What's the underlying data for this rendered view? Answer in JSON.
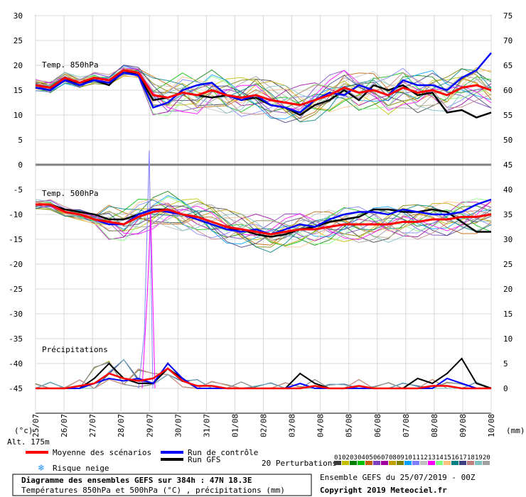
{
  "chart_data": {
    "type": "line",
    "panels": {
      "t850": {
        "label": "Temp. 850hPa"
      },
      "t500": {
        "label": "Temp. 500hPa"
      },
      "precip": {
        "label": "Précipitations"
      }
    },
    "left_axis": {
      "unit": "(°c)",
      "ylim": [
        -45,
        30
      ],
      "ticks": [
        30,
        25,
        20,
        15,
        10,
        5,
        0,
        -5,
        -10,
        -15,
        -20,
        -25,
        -30,
        -35,
        -40,
        -45
      ]
    },
    "right_axis": {
      "unit": "(mm)",
      "ylim": [
        0,
        75
      ],
      "ticks": [
        75,
        70,
        65,
        60,
        55,
        50,
        45,
        40,
        35,
        30,
        25,
        20,
        15,
        10,
        5,
        0
      ]
    },
    "x_dates": [
      "25/07",
      "26/07",
      "27/07",
      "28/07",
      "29/07",
      "30/07",
      "31/07",
      "01/08",
      "02/08",
      "03/08",
      "04/08",
      "05/08",
      "06/08",
      "07/08",
      "08/08",
      "09/08",
      "10/08"
    ],
    "altitude": "Alt. 175m",
    "series": [
      {
        "name": "Moyenne des scénarios",
        "color": "#ff0000",
        "t850": [
          16,
          15.5,
          17.5,
          16.5,
          17.5,
          17,
          19,
          18.5,
          14,
          13.5,
          14.5,
          14,
          15,
          14,
          13.5,
          14,
          13,
          12.5,
          12,
          13,
          14,
          15.5,
          14.5,
          15,
          14,
          15.5,
          14.5,
          15,
          14,
          15.5,
          16,
          15
        ],
        "t500": [
          -8,
          -8,
          -9.5,
          -10,
          -11,
          -11.5,
          -12,
          -10.5,
          -9.5,
          -9,
          -10,
          -10.5,
          -11.5,
          -12.5,
          -13,
          -13.5,
          -14,
          -13.5,
          -13,
          -13,
          -12.5,
          -12,
          -12,
          -12,
          -12,
          -11.5,
          -11.5,
          -11,
          -11,
          -10.5,
          -10.5,
          -10
        ],
        "precip": [
          0,
          0,
          0,
          0.5,
          1,
          3,
          2,
          1.5,
          2,
          4,
          1.5,
          0.5,
          0.5,
          0,
          0,
          0,
          0,
          0,
          0,
          0.5,
          0,
          0,
          0.5,
          0,
          0,
          0,
          0,
          0.5,
          0.5,
          0,
          0,
          0
        ]
      },
      {
        "name": "Run de contrôle",
        "color": "#0000ff",
        "t850": [
          15.5,
          15,
          17,
          16,
          17,
          16.5,
          18.5,
          18,
          11.5,
          12.5,
          15,
          16,
          16.5,
          14,
          13,
          14,
          12,
          11.5,
          10.5,
          13,
          14.5,
          14,
          16,
          15,
          14,
          17,
          16,
          16,
          15,
          17.5,
          19,
          22.5
        ],
        "t500": [
          -8,
          -8,
          -9.5,
          -10,
          -11,
          -12,
          -12,
          -10,
          -9,
          -9.5,
          -10,
          -11,
          -12,
          -13,
          -13.5,
          -13,
          -14,
          -13,
          -12,
          -12.5,
          -11,
          -10,
          -9.5,
          -9.5,
          -10,
          -9,
          -9.5,
          -10,
          -10,
          -9.5,
          -8,
          -7
        ],
        "precip": [
          0,
          0,
          0,
          0,
          1,
          2,
          1.5,
          2,
          1,
          5,
          2,
          0,
          0,
          0,
          0,
          0,
          0,
          0,
          1,
          0,
          0,
          0,
          0,
          0,
          0,
          0,
          0,
          0,
          2,
          1,
          0,
          0
        ]
      },
      {
        "name": "Run GFS",
        "color": "#000000",
        "t850": [
          15.5,
          15,
          17,
          16.5,
          17,
          16,
          19,
          18,
          13,
          13.5,
          14.5,
          14,
          13.5,
          14,
          13,
          13.5,
          12,
          11.5,
          10,
          12,
          13,
          15,
          13,
          16,
          15,
          16,
          14,
          14.5,
          10.5,
          11,
          9.5,
          10.5
        ],
        "t500": [
          -8,
          -8,
          -9,
          -9.5,
          -10,
          -11,
          -11,
          -10,
          -9,
          -9,
          -10,
          -11,
          -12,
          -13,
          -13,
          -14,
          -14.5,
          -14,
          -13,
          -12.5,
          -11.5,
          -11,
          -10.5,
          -9,
          -9,
          -9.5,
          -9.5,
          -9,
          -9.5,
          -11.5,
          -13.5,
          -13.5
        ],
        "precip": [
          0,
          0,
          0,
          0,
          2,
          5,
          2,
          1,
          1,
          4,
          2,
          0,
          0,
          0,
          0,
          0,
          0,
          0,
          3,
          1,
          0,
          0,
          0,
          0,
          0,
          0,
          2,
          1,
          3,
          6,
          1,
          0
        ]
      }
    ],
    "perturbation_colors": [
      "#3a3a3a",
      "#c0c000",
      "#008000",
      "#00c000",
      "#c06000",
      "#7f3fbf",
      "#a000a0",
      "#c0a000",
      "#808000",
      "#00a0ff",
      "#8080ff",
      "#c0c0c0",
      "#ff00ff",
      "#80ff80",
      "#ffc080",
      "#008080",
      "#404080",
      "#c08080",
      "#80c0c0",
      "#a0a0a0"
    ]
  },
  "legend": {
    "mean_label": "Moyenne des scénarios",
    "control_label": "Run de contrôle",
    "gfs_label": "Run GFS",
    "snow_label": "Risque neige",
    "perturbations_label": "20 Perturbations",
    "perturbation_numbers": [
      "01",
      "02",
      "03",
      "04",
      "05",
      "06",
      "07",
      "08",
      "09",
      "10",
      "11",
      "12",
      "13",
      "14",
      "15",
      "16",
      "17",
      "18",
      "19",
      "20"
    ]
  },
  "footer": {
    "title": "Diagramme des ensembles GEFS sur 384h : 47N 18.3E",
    "subtitle": "Températures 850hPa et 500hPa (°C) , précipitations (mm)",
    "run": "Ensemble GEFS du 25/07/2019 - 00Z",
    "copyright": "Copyright 2019 Meteociel.fr"
  }
}
